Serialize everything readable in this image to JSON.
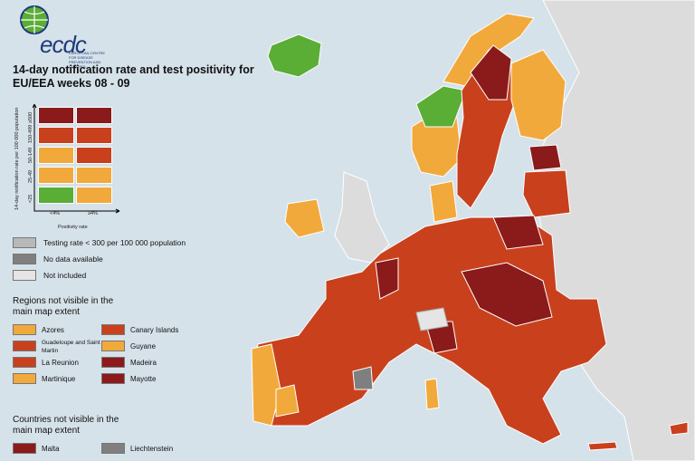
{
  "logo": {
    "text": "ecdc",
    "subtitle": "EUROPEAN CENTRE FOR DISEASE PREVENTION AND CONTROL"
  },
  "title": "14-day notification rate and test positivity for EU/EEA weeks 08 - 09",
  "matrix": {
    "y_axis_label": "14-day notification rate per 100 000 population",
    "y_ticks": [
      "≥500",
      "150-499",
      "50-149",
      "25-49",
      "<25"
    ],
    "x_axis_label": "Positivity rate",
    "x_ticks": [
      "<4%",
      "≥4%"
    ],
    "cells": [
      [
        "#8b1a1a",
        "#8b1a1a"
      ],
      [
        "#c9401d",
        "#c9401d"
      ],
      [
        "#f2a93b",
        "#c9401d"
      ],
      [
        "#f2a93b",
        "#f2a93b"
      ],
      [
        "#5aad35",
        "#f2a93b"
      ]
    ]
  },
  "legend": {
    "grey_items": [
      {
        "label": "Testing rate < 300 per 100 000 population",
        "color": "#b8b8b8"
      },
      {
        "label": "No data available",
        "color": "#7f7f7f"
      },
      {
        "label": "Not included",
        "color": "#e5e5e5"
      }
    ]
  },
  "regions_heading": "Regions not visible in the main map extent",
  "regions": [
    {
      "label": "Azores",
      "color": "#f2a93b"
    },
    {
      "label": "Guadeloupe and Saint Martin",
      "color": "#c9401d"
    },
    {
      "label": "La Reunion",
      "color": "#c9401d"
    },
    {
      "label": "Martinique",
      "color": "#f2a93b"
    },
    {
      "label": "Canary Islands",
      "color": "#c9401d"
    },
    {
      "label": "Guyane",
      "color": "#f2a93b"
    },
    {
      "label": "Madeira",
      "color": "#8b1a1a"
    },
    {
      "label": "Mayotte",
      "color": "#8b1a1a"
    }
  ],
  "countries_heading": "Countries not visible in the main map extent",
  "countries": [
    {
      "label": "Malta",
      "color": "#8b1a1a"
    },
    {
      "label": "Liechtenstein",
      "color": "#7f7f7f"
    }
  ]
}
